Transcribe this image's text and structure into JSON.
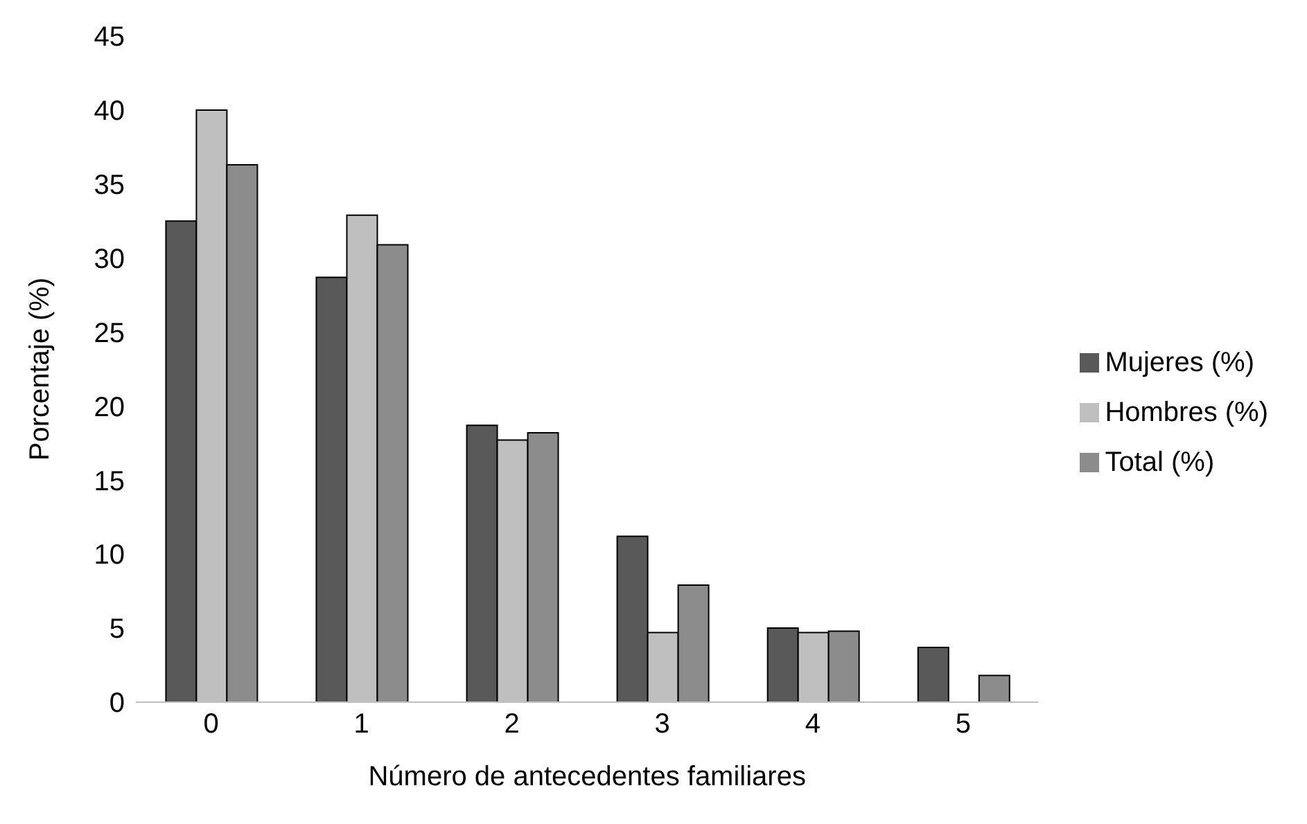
{
  "chart_data": {
    "type": "bar",
    "xlabel": "Número de antecedentes familiares",
    "ylabel": "Porcentaje (%)",
    "categories": [
      "0",
      "1",
      "2",
      "3",
      "4",
      "5"
    ],
    "series": [
      {
        "name": "Mujeres (%)",
        "color": "#595959",
        "values": [
          32.5,
          28.7,
          18.7,
          11.2,
          5.0,
          3.7
        ]
      },
      {
        "name": "Hombres (%)",
        "color": "#bfbfbf",
        "values": [
          40.0,
          32.9,
          17.7,
          4.7,
          4.7,
          0
        ]
      },
      {
        "name": "Total (%)",
        "color": "#8c8c8c",
        "values": [
          36.3,
          30.9,
          18.2,
          7.9,
          4.8,
          1.8
        ]
      }
    ],
    "ylim": [
      0,
      45
    ],
    "yticks": [
      0,
      5,
      10,
      15,
      20,
      25,
      30,
      35,
      40,
      45
    ],
    "grid": false,
    "legend": "right"
  }
}
